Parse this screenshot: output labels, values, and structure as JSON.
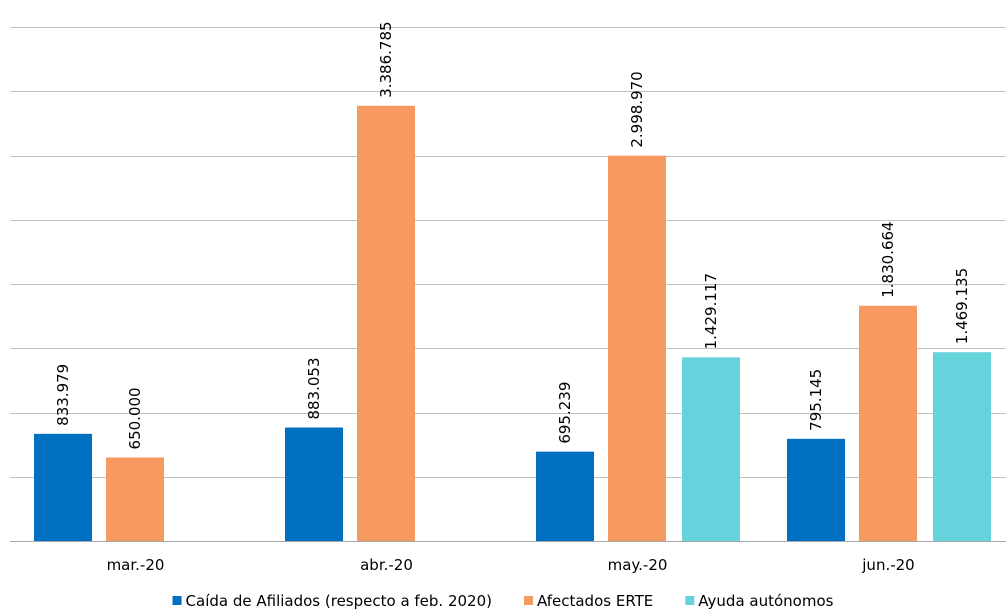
{
  "chart_data": {
    "type": "bar",
    "categories": [
      "mar.-20",
      "abr.-20",
      "may.-20",
      "jun.-20"
    ],
    "series": [
      {
        "name": "Caída de Afiliados (respecto a feb. 2020)",
        "color": "#0070c0",
        "values": [
          833979,
          883053,
          695239,
          795145
        ],
        "labels": [
          "833.979",
          "883.053",
          "695.239",
          "795.145"
        ]
      },
      {
        "name": "Afectados ERTE",
        "color": "#f79a62",
        "values": [
          650000,
          3386785,
          2998970,
          1830664
        ],
        "labels": [
          "650.000",
          "3.386.785",
          "2.998.970",
          "1.830.664"
        ]
      },
      {
        "name": "Ayuda autónomos",
        "color": "#66d2dc",
        "values": [
          null,
          null,
          1429117,
          1469135
        ],
        "labels": [
          "",
          "",
          "1.429.117",
          "1.469.135"
        ]
      }
    ],
    "ylim": [
      0,
      4000000
    ],
    "ytick_step": 500000,
    "y_tick_labels_visible": false,
    "grid": true,
    "legend_position": "bottom",
    "title": "",
    "xlabel": "",
    "ylabel": ""
  }
}
